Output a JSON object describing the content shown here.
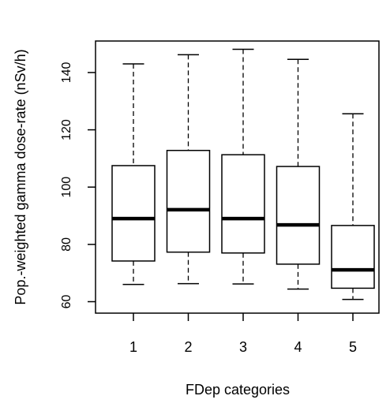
{
  "chart_data": {
    "type": "box",
    "title": "",
    "xlabel": "FDep categories",
    "ylabel": "Pop.-weighted gamma dose-rate (nSv/h)",
    "categories": [
      "1",
      "2",
      "3",
      "4",
      "5"
    ],
    "ylim": [
      56,
      151
    ],
    "yticks": [
      60,
      80,
      100,
      120,
      140
    ],
    "ytick_labels": [
      "60",
      "80",
      "100",
      "120",
      "140"
    ],
    "boxes": [
      {
        "category": "1",
        "min": 66,
        "q1": 74.2,
        "median": 89,
        "q3": 107.5,
        "max": 143
      },
      {
        "category": "2",
        "min": 66.3,
        "q1": 77.3,
        "median": 92.1,
        "q3": 112.8,
        "max": 146.2
      },
      {
        "category": "3",
        "min": 66.2,
        "q1": 77,
        "median": 89,
        "q3": 111.3,
        "max": 148.1
      },
      {
        "category": "4",
        "min": 64.4,
        "q1": 73.1,
        "median": 86.8,
        "q3": 107.2,
        "max": 144.6
      },
      {
        "category": "5",
        "min": 60.8,
        "q1": 64.7,
        "median": 71.1,
        "q3": 86.6,
        "max": 125.6
      }
    ],
    "grid": false,
    "legend": "none",
    "colors": {
      "box_fill": "#ffffff",
      "line": "#000000"
    }
  }
}
